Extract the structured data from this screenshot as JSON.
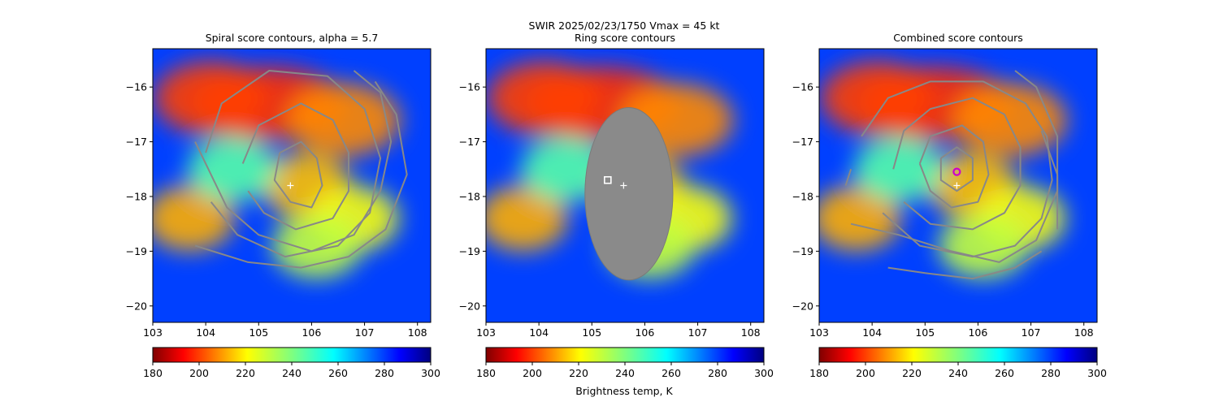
{
  "suptitle": "SWIR  2025/02/23/1750    Vmax = 45 kt",
  "chart_data": {
    "type": "heatmap",
    "colormap": "jet_r",
    "xlim": [
      103.0,
      108.25
    ],
    "ylim": [
      -20.3,
      -15.3
    ],
    "xticks": [
      103,
      104,
      105,
      106,
      107,
      108
    ],
    "yticks": [
      -16,
      -17,
      -18,
      -19,
      -20
    ],
    "colorbar": {
      "range": [
        180,
        300
      ],
      "ticks": [
        180,
        200,
        220,
        240,
        260,
        280,
        300
      ],
      "label": "Brightness temp, K"
    },
    "storm_center_marker": {
      "lon": 105.6,
      "lat": -17.8,
      "marker": "+"
    },
    "cloud_field_blobs_lon_lat_tempK": [
      {
        "lon": 105.2,
        "lat": -16.3,
        "temp": 198
      },
      {
        "lon": 104.1,
        "lat": -16.2,
        "temp": 200
      },
      {
        "lon": 106.6,
        "lat": -16.6,
        "temp": 208
      },
      {
        "lon": 105.9,
        "lat": -17.8,
        "temp": 214
      },
      {
        "lon": 106.8,
        "lat": -18.4,
        "temp": 222
      },
      {
        "lon": 106.1,
        "lat": -18.9,
        "temp": 230
      },
      {
        "lon": 103.7,
        "lat": -18.4,
        "temp": 212
      },
      {
        "lon": 104.5,
        "lat": -17.5,
        "temp": 246
      }
    ],
    "panels": [
      {
        "title": "Spiral score contours, alpha =  5.7",
        "contours_lon_lat": [
          [
            [
              105.4,
              -17.2
            ],
            [
              105.8,
              -17.0
            ],
            [
              106.1,
              -17.3
            ],
            [
              106.2,
              -17.8
            ],
            [
              106.0,
              -18.2
            ],
            [
              105.6,
              -18.1
            ],
            [
              105.3,
              -17.7
            ],
            [
              105.4,
              -17.2
            ]
          ],
          [
            [
              104.7,
              -17.4
            ],
            [
              105.0,
              -16.7
            ],
            [
              105.8,
              -16.3
            ],
            [
              106.4,
              -16.6
            ],
            [
              106.7,
              -17.2
            ],
            [
              106.7,
              -17.9
            ],
            [
              106.4,
              -18.4
            ],
            [
              105.7,
              -18.6
            ],
            [
              105.1,
              -18.3
            ],
            [
              104.8,
              -17.9
            ]
          ],
          [
            [
              104.0,
              -17.2
            ],
            [
              104.3,
              -16.3
            ],
            [
              105.2,
              -15.7
            ],
            [
              106.3,
              -15.8
            ],
            [
              107.0,
              -16.4
            ],
            [
              107.3,
              -17.3
            ],
            [
              107.1,
              -18.3
            ],
            [
              106.5,
              -18.9
            ],
            [
              105.5,
              -19.1
            ],
            [
              104.6,
              -18.7
            ],
            [
              104.1,
              -18.1
            ]
          ],
          [
            [
              103.8,
              -17.0
            ],
            [
              104.4,
              -18.2
            ],
            [
              105.0,
              -18.7
            ],
            [
              106.0,
              -19.0
            ],
            [
              106.8,
              -18.7
            ],
            [
              107.3,
              -17.9
            ],
            [
              107.5,
              -17.0
            ],
            [
              107.3,
              -16.1
            ],
            [
              106.8,
              -15.7
            ]
          ],
          [
            [
              103.8,
              -18.9
            ],
            [
              104.8,
              -19.2
            ],
            [
              105.8,
              -19.3
            ],
            [
              106.7,
              -19.1
            ],
            [
              107.4,
              -18.6
            ],
            [
              107.8,
              -17.6
            ],
            [
              107.6,
              -16.5
            ],
            [
              107.2,
              -15.9
            ]
          ]
        ],
        "marker": null
      },
      {
        "title": "Ring score contours",
        "contours_lon_lat": [],
        "ring_region": {
          "center_lon": 105.7,
          "center_lat": -17.95,
          "radius_lon": 1.0,
          "radius_lat": 1.5
        },
        "marker": {
          "lon": 105.3,
          "lat": -17.7,
          "shape": "square",
          "color": "#ffffff"
        }
      },
      {
        "title": "Combined score contours",
        "contours_lon_lat": [
          [
            [
              105.3,
              -17.3
            ],
            [
              105.6,
              -17.1
            ],
            [
              105.9,
              -17.3
            ],
            [
              105.9,
              -17.7
            ],
            [
              105.6,
              -17.9
            ],
            [
              105.3,
              -17.7
            ],
            [
              105.3,
              -17.3
            ]
          ],
          [
            [
              104.9,
              -17.4
            ],
            [
              105.1,
              -16.9
            ],
            [
              105.7,
              -16.7
            ],
            [
              106.1,
              -17.0
            ],
            [
              106.2,
              -17.6
            ],
            [
              106.0,
              -18.1
            ],
            [
              105.5,
              -18.2
            ],
            [
              105.1,
              -17.9
            ],
            [
              104.9,
              -17.4
            ]
          ],
          [
            [
              104.4,
              -17.5
            ],
            [
              104.6,
              -16.8
            ],
            [
              105.1,
              -16.4
            ],
            [
              105.9,
              -16.2
            ],
            [
              106.5,
              -16.5
            ],
            [
              106.8,
              -17.1
            ],
            [
              106.8,
              -17.8
            ],
            [
              106.5,
              -18.3
            ],
            [
              105.9,
              -18.6
            ],
            [
              105.1,
              -18.5
            ],
            [
              104.6,
              -18.1
            ]
          ],
          [
            [
              103.8,
              -16.9
            ],
            [
              104.3,
              -16.2
            ],
            [
              105.1,
              -15.9
            ],
            [
              106.1,
              -15.9
            ],
            [
              106.9,
              -16.3
            ],
            [
              107.3,
              -16.9
            ],
            [
              107.4,
              -17.7
            ],
            [
              107.2,
              -18.4
            ],
            [
              106.7,
              -18.9
            ],
            [
              105.9,
              -19.1
            ],
            [
              104.9,
              -18.9
            ],
            [
              104.2,
              -18.3
            ]
          ],
          [
            [
              103.6,
              -18.5
            ],
            [
              104.5,
              -18.7
            ],
            [
              105.5,
              -19.0
            ],
            [
              106.4,
              -19.2
            ],
            [
              107.1,
              -18.8
            ],
            [
              107.5,
              -17.9
            ],
            [
              107.5,
              -16.9
            ],
            [
              107.1,
              -16.0
            ],
            [
              106.7,
              -15.7
            ]
          ],
          [
            [
              104.3,
              -19.3
            ],
            [
              105.0,
              -19.4
            ],
            [
              105.9,
              -19.5
            ],
            [
              106.7,
              -19.3
            ],
            [
              107.2,
              -19.0
            ]
          ],
          [
            [
              107.2,
              -16.8
            ],
            [
              107.5,
              -17.6
            ],
            [
              107.5,
              -18.6
            ]
          ],
          [
            [
              103.5,
              -17.8
            ],
            [
              103.6,
              -17.5
            ]
          ]
        ],
        "marker": {
          "lon": 105.6,
          "lat": -17.55,
          "shape": "circle",
          "color": "#cc00cc"
        }
      }
    ]
  }
}
